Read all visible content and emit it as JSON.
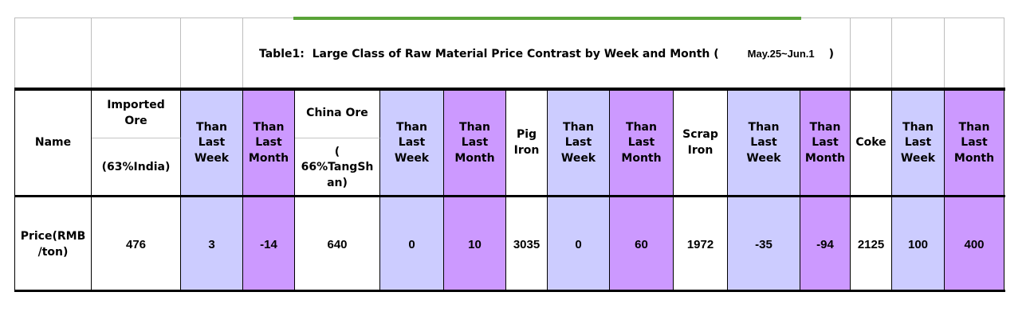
{
  "colors": {
    "accent_green": "#59a338",
    "than_week_fill": "#ccccff",
    "than_month_fill": "#cc99ff",
    "gridline_gray": "#bdbdbd",
    "border_black": "#000000"
  },
  "title": {
    "text": "Table1:  Large Class of Raw Material Price Contrast by Week and Month (",
    "date_range": "May.25~Jun.1",
    "close_paren": ")"
  },
  "table": {
    "name_header": "Name",
    "than_week_label": "Than\nLast\nWeek",
    "than_month_label": "Than\nLast\nMonth",
    "price_row_label": "Price(RMB\n/ton)",
    "groups": [
      {
        "name": "Imported\nOre",
        "sub": "(63%India)",
        "price": "476",
        "than_week": "3",
        "than_month": "-14"
      },
      {
        "name": "China Ore",
        "sub": "(\n66%TangSh\nan)",
        "price": "640",
        "than_week": "0",
        "than_month": "10"
      },
      {
        "name": "Pig\nIron",
        "price": "3035",
        "than_week": "0",
        "than_month": "60"
      },
      {
        "name": "Scrap\nIron",
        "price": "1972",
        "than_week": "-35",
        "than_month": "-94"
      },
      {
        "name": "Coke",
        "price": "2125",
        "than_week": "100",
        "than_month": "400"
      }
    ]
  }
}
